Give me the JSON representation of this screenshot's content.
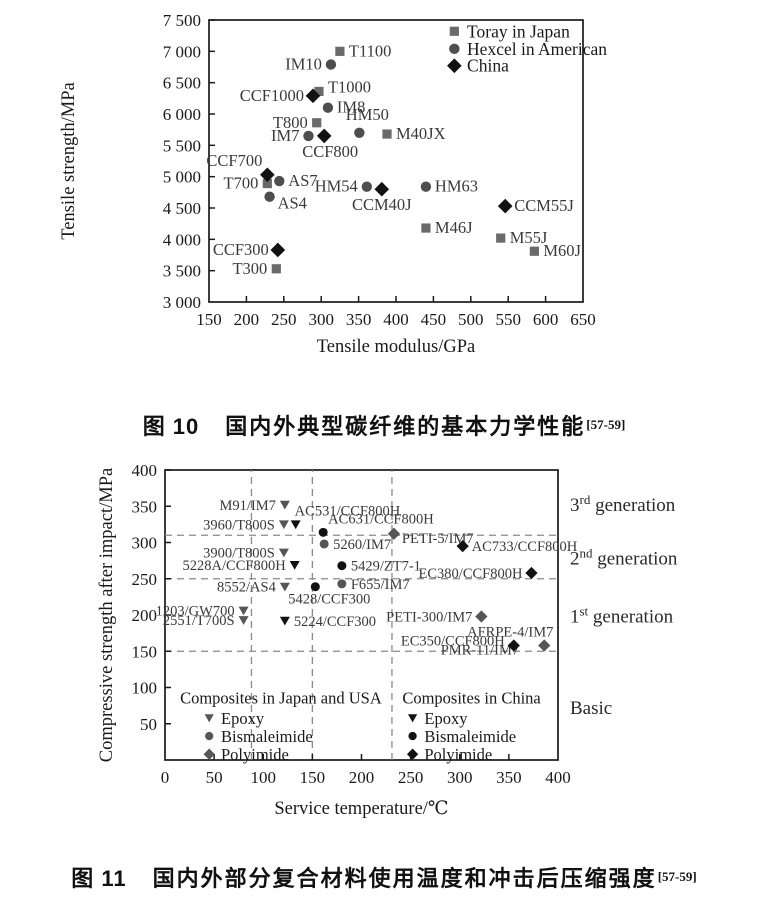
{
  "figure10": {
    "caption": {
      "label": "图 10",
      "text": "国内外典型碳纤维的基本力学性能",
      "ref": "[57-59]"
    }
  },
  "figure11": {
    "caption": {
      "label": "图 11",
      "text": "国内外部分复合材料使用温度和冲击后压缩强度",
      "ref": "[57-59]"
    }
  },
  "colors": {
    "axis": "#1a1a1a",
    "tick_text": "#1a1a1a",
    "point_label": "#3a3a3a",
    "dashed_line": "#8a8a8a",
    "toray_gray": "#6a6a6a",
    "hexcel_gray": "#4e4e4e",
    "china_black": "#121212",
    "japan_usa_gray": "#565656"
  },
  "chart_data": [
    {
      "type": "scatter",
      "title": "",
      "xlabel": "Tensile modulus/GPa",
      "ylabel": "Tensile strength/MPa",
      "xlim": [
        150,
        650
      ],
      "xtick_step": 50,
      "ylim": [
        3000,
        7500
      ],
      "ytick_step": 500,
      "ytick_format": "thousands-space",
      "grid": false,
      "legend": {
        "position": "top-right-inside",
        "x_marker": 478,
        "x_text": 495,
        "entries": [
          {
            "label": "Toray in Japan",
            "marker": "square",
            "color": "#6a6a6a",
            "y": 7320
          },
          {
            "label": "Hexcel in American",
            "marker": "circle",
            "color": "#4e4e4e",
            "y": 7040
          },
          {
            "label": "China",
            "marker": "diamond",
            "color": "#121212",
            "y": 6770
          }
        ]
      },
      "series": [
        {
          "name": "Toray in Japan",
          "marker": "square",
          "color": "#6a6a6a",
          "points": [
            {
              "label": "T1100",
              "x": 325,
              "y": 7000,
              "pos": "right"
            },
            {
              "label": "T1000",
              "x": 297,
              "y": 6360,
              "pos": "right",
              "dy": -4
            },
            {
              "label": "T800",
              "x": 294,
              "y": 5860,
              "pos": "left"
            },
            {
              "label": "M40JX",
              "x": 388,
              "y": 5680,
              "pos": "right"
            },
            {
              "label": "T700",
              "x": 228,
              "y": 4890,
              "pos": "left"
            },
            {
              "label": "M46J",
              "x": 440,
              "y": 4180,
              "pos": "right"
            },
            {
              "label": "M55J",
              "x": 540,
              "y": 4020,
              "pos": "right"
            },
            {
              "label": "M60J",
              "x": 585,
              "y": 3810,
              "pos": "right"
            },
            {
              "label": "T300",
              "x": 240,
              "y": 3530,
              "pos": "left"
            }
          ]
        },
        {
          "name": "Hexcel in American",
          "marker": "circle",
          "color": "#4e4e4e",
          "points": [
            {
              "label": "IM10",
              "x": 313,
              "y": 6790,
              "pos": "left"
            },
            {
              "label": "IM8",
              "x": 309,
              "y": 6100,
              "pos": "right"
            },
            {
              "label": "IM7",
              "x": 283,
              "y": 5650,
              "pos": "left"
            },
            {
              "label": "HM50",
              "x": 351,
              "y": 5700,
              "pos": "above",
              "dx": 8,
              "dy": -4
            },
            {
              "label": "AS7",
              "x": 244,
              "y": 4930,
              "pos": "right"
            },
            {
              "label": "AS4",
              "x": 231,
              "y": 4680,
              "pos": "right-below"
            },
            {
              "label": "HM54",
              "x": 361,
              "y": 4840,
              "pos": "left"
            },
            {
              "label": "HM63",
              "x": 440,
              "y": 4840,
              "pos": "right"
            }
          ]
        },
        {
          "name": "China",
          "marker": "diamond",
          "color": "#121212",
          "points": [
            {
              "label": "CCF1000",
              "x": 289,
              "y": 6290,
              "pos": "left"
            },
            {
              "label": "CCF800",
              "x": 304,
              "y": 5650,
              "pos": "below",
              "dx": 6,
              "dy": 4
            },
            {
              "label": "CCF700",
              "x": 228,
              "y": 5030,
              "pos": "above-left"
            },
            {
              "label": "CCM40J",
              "x": 381,
              "y": 4800,
              "pos": "below",
              "dy": 4
            },
            {
              "label": "CCM55J",
              "x": 546,
              "y": 4530,
              "pos": "right"
            },
            {
              "label": "CCF300",
              "x": 242,
              "y": 3830,
              "pos": "left"
            }
          ]
        }
      ]
    },
    {
      "type": "scatter",
      "title": "",
      "xlabel": "Service temperature/℃",
      "ylabel": "Compressive strength after impact/MPa",
      "xlim": [
        0,
        400
      ],
      "xtick_step": 50,
      "ylim": [
        0,
        400
      ],
      "ytick_step": 50,
      "ytick_from": 50,
      "grid": false,
      "hlines_dashed": [
        310,
        250,
        150
      ],
      "vlines_dashed": [
        88,
        150,
        231
      ],
      "right_labels": [
        {
          "prefix": "3",
          "sup": "rd",
          "suffix": " generation",
          "y": 352
        },
        {
          "prefix": "2",
          "sup": "nd",
          "suffix": " generation",
          "y": 278
        },
        {
          "prefix": "1",
          "sup": "st",
          "suffix": " generation",
          "y": 198
        },
        {
          "prefix": "Basic",
          "sup": "",
          "suffix": "",
          "y": 72
        }
      ],
      "inplot_legend": {
        "title_y": 86,
        "rows_y": [
          58,
          33,
          8
        ],
        "groups": [
          {
            "title": "Composites in Japan and USA",
            "title_x": 118,
            "marker_x": 45,
            "text_x": 57,
            "color": "#565656"
          },
          {
            "title": "Composites in China",
            "title_x": 312,
            "marker_x": 252,
            "text_x": 264,
            "color": "#121212"
          }
        ],
        "rows": [
          {
            "marker": "triangle",
            "label": "Epoxy"
          },
          {
            "marker": "circle",
            "label": "Bismaleimide"
          },
          {
            "marker": "diamond",
            "label": "Polyimide"
          }
        ]
      },
      "series": [
        {
          "name": "Composites in Japan and USA",
          "color": "#565656",
          "points": [
            {
              "label": "M91/IM7",
              "x": 122,
              "y": 352,
              "marker": "triangle",
              "pos": "left"
            },
            {
              "label": "3960/T800S",
              "x": 121,
              "y": 325,
              "marker": "triangle",
              "pos": "left"
            },
            {
              "label": "3900/T800S",
              "x": 121,
              "y": 286,
              "marker": "triangle",
              "pos": "left"
            },
            {
              "label": "8552/AS4",
              "x": 122,
              "y": 239,
              "marker": "triangle",
              "pos": "left"
            },
            {
              "label": "1203/GW700",
              "x": 80,
              "y": 206,
              "marker": "triangle",
              "pos": "left"
            },
            {
              "label": "2551/T700S",
              "x": 80,
              "y": 193,
              "marker": "triangle",
              "pos": "left"
            },
            {
              "label": "5260/IM7",
              "x": 162,
              "y": 298,
              "marker": "circle",
              "pos": "right"
            },
            {
              "label": "F655/IM7",
              "x": 180,
              "y": 243,
              "marker": "circle",
              "pos": "right"
            },
            {
              "label": "PETI-5/IM7",
              "x": 233,
              "y": 312,
              "marker": "diamond",
              "pos": "right-below",
              "dy": -3
            },
            {
              "label": "PETI-300/IM7",
              "x": 322,
              "y": 198,
              "marker": "diamond",
              "pos": "left"
            },
            {
              "label": "PMR-11/IM7",
              "x": 348,
              "y": 150,
              "marker": "diamond",
              "no_marker": true,
              "pos": "below",
              "dx": -27,
              "dy": -14
            },
            {
              "label": "AFRPE-4/IM7",
              "x": 386,
              "y": 158,
              "marker": "diamond",
              "pos": "above",
              "dx": -34
            }
          ]
        },
        {
          "name": "Composites in China",
          "color": "#121212",
          "points": [
            {
              "label": "AC531/CCF800H",
              "x": 133,
              "y": 325,
              "marker": "triangle",
              "pos": "above-right",
              "dx": -6
            },
            {
              "label": "5228A/CCF800H",
              "x": 132,
              "y": 269,
              "marker": "triangle",
              "pos": "left"
            },
            {
              "label": "5224/CCF300",
              "x": 122,
              "y": 192,
              "marker": "triangle",
              "pos": "right"
            },
            {
              "label": "AC631/CCF800H",
              "x": 161,
              "y": 314,
              "marker": "circle",
              "pos": "above-right"
            },
            {
              "label": "5429/ZT7-1",
              "x": 180,
              "y": 268,
              "marker": "circle",
              "pos": "right"
            },
            {
              "label": "5428/CCF300",
              "x": 153,
              "y": 239,
              "marker": "circle",
              "pos": "below",
              "dx": 14
            },
            {
              "label": "AC733/CCF800H",
              "x": 303,
              "y": 295,
              "marker": "diamond",
              "pos": "right"
            },
            {
              "label": "EC380/CCF800H",
              "x": 373,
              "y": 258,
              "marker": "diamond",
              "pos": "left"
            },
            {
              "label": "EC350/CCF800H",
              "x": 355,
              "y": 158,
              "marker": "diamond",
              "pos": "left",
              "dy": -5
            }
          ]
        }
      ]
    }
  ]
}
